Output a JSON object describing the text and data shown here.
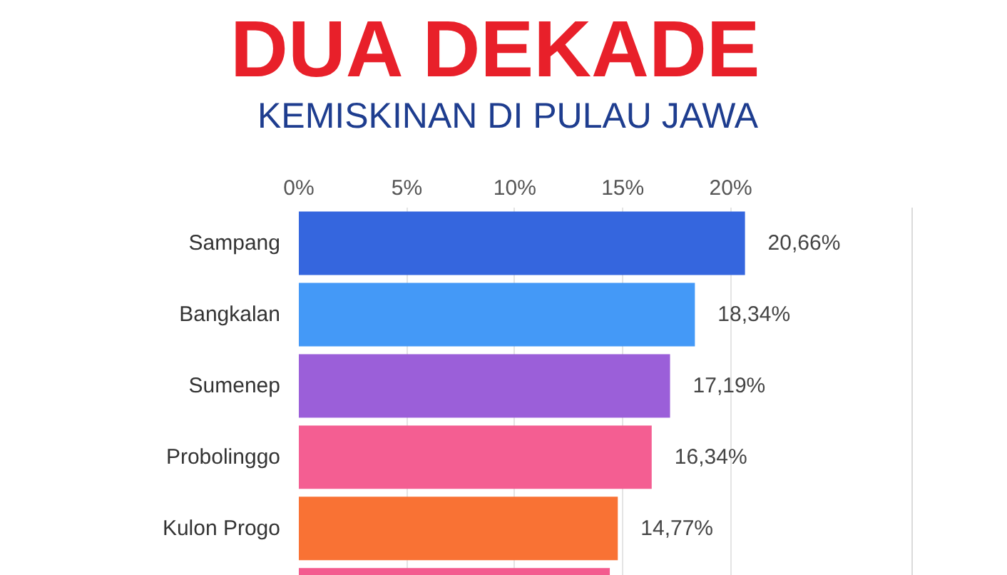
{
  "chart_data": {
    "type": "bar",
    "orientation": "horizontal",
    "title": "DUA DEKADE",
    "subtitle": "KEMISKINAN DI PULAU JAWA",
    "categories": [
      "Sampang",
      "Bangkalan",
      "Sumenep",
      "Probolinggo",
      "Kulon Progo",
      null
    ],
    "values": [
      20.66,
      18.34,
      17.19,
      16.34,
      14.77,
      14.4
    ],
    "colors": [
      "#3566de",
      "#4499f7",
      "#9b5fd9",
      "#f45e92",
      "#f97234",
      "#f35b8f"
    ],
    "value_labels": [
      "20,66%",
      "18,34%",
      "17,19%",
      "16,34%",
      "14,77%",
      null
    ],
    "xlim": [
      0,
      28.4
    ],
    "xticks": [
      {
        "value": 0,
        "label": "0%"
      },
      {
        "value": 5,
        "label": "5%"
      },
      {
        "value": 10,
        "label": "10%"
      },
      {
        "value": 15,
        "label": "15%"
      },
      {
        "value": 20,
        "label": "20%"
      }
    ],
    "grid": "x"
  }
}
